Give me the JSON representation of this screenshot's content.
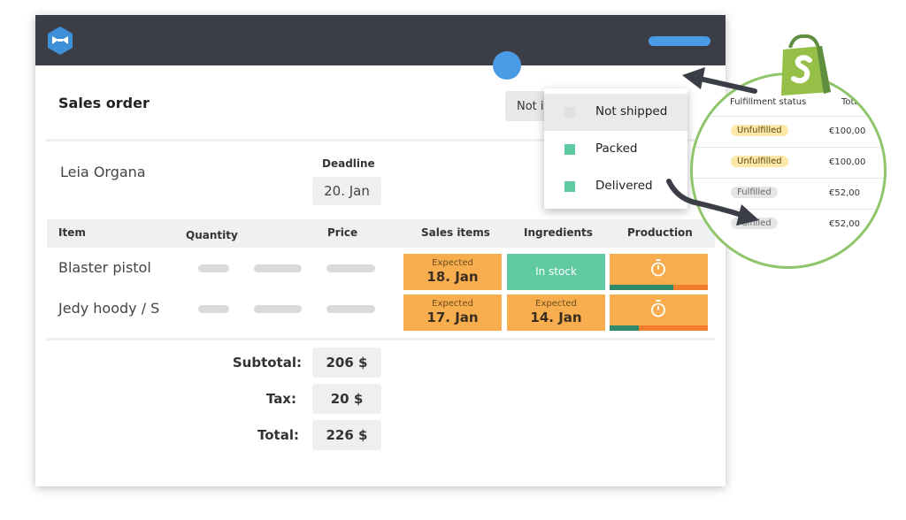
{
  "colors": {
    "topbar": "#3b3e46",
    "accent_blue": "#4a9be6",
    "expected_orange": "#f8ae4f",
    "in_stock_green": "#5fcaa2",
    "shopify_green": "#95bf47",
    "progress_green": "#2e8a6a",
    "progress_orange": "#f27e2c"
  },
  "header": {
    "logo_icon": "katana-logo-icon"
  },
  "order": {
    "title": "Sales order",
    "status_select_value": "Not in",
    "customer": "Leia Organa",
    "deadline_label": "Deadline",
    "deadline_value": "20. Jan"
  },
  "status_dropdown": {
    "options": [
      {
        "label": "Not shipped",
        "color": "#e0e1e3",
        "selected": true
      },
      {
        "label": "Packed",
        "color": "#5fcaa2",
        "selected": false
      },
      {
        "label": "Delivered",
        "color": "#5fcaa2",
        "selected": false
      }
    ]
  },
  "table": {
    "headers": {
      "item": "Item",
      "quantity": "Quantity",
      "price": "Price",
      "sales_items": "Sales items",
      "ingredients": "Ingredients",
      "production": "Production"
    },
    "rows": [
      {
        "item": "Blaster pistol",
        "sales_items": {
          "small": "Expected",
          "big": "18. Jan"
        },
        "ingredients": {
          "label": "In stock"
        },
        "production": {
          "icon": "stopwatch-icon",
          "progress": 0.65
        }
      },
      {
        "item": "Jedy hoody / S",
        "sales_items": {
          "small": "Expected",
          "big": "17. Jan"
        },
        "ingredients": {
          "small": "Expected",
          "big": "14. Jan"
        },
        "production": {
          "icon": "stopwatch-icon",
          "progress": 0.3
        }
      }
    ]
  },
  "totals": {
    "subtotal_label": "Subtotal:",
    "subtotal_value": "206 $",
    "tax_label": "Tax:",
    "tax_value": "20 $",
    "total_label": "Total:",
    "total_value": "226 $"
  },
  "shopify_panel": {
    "logo_icon": "shopify-bag-icon",
    "headers": {
      "fulfillment": "Fulfillment status",
      "total": "Tota"
    },
    "rows": [
      {
        "status": "Unfulfilled",
        "amount": "€100,00"
      },
      {
        "status": "Unfulfilled",
        "amount": "€100,00"
      },
      {
        "status": "Fulfilled",
        "amount": "€52,00"
      },
      {
        "status": "Fulfilled",
        "amount": "€52,00"
      }
    ]
  }
}
